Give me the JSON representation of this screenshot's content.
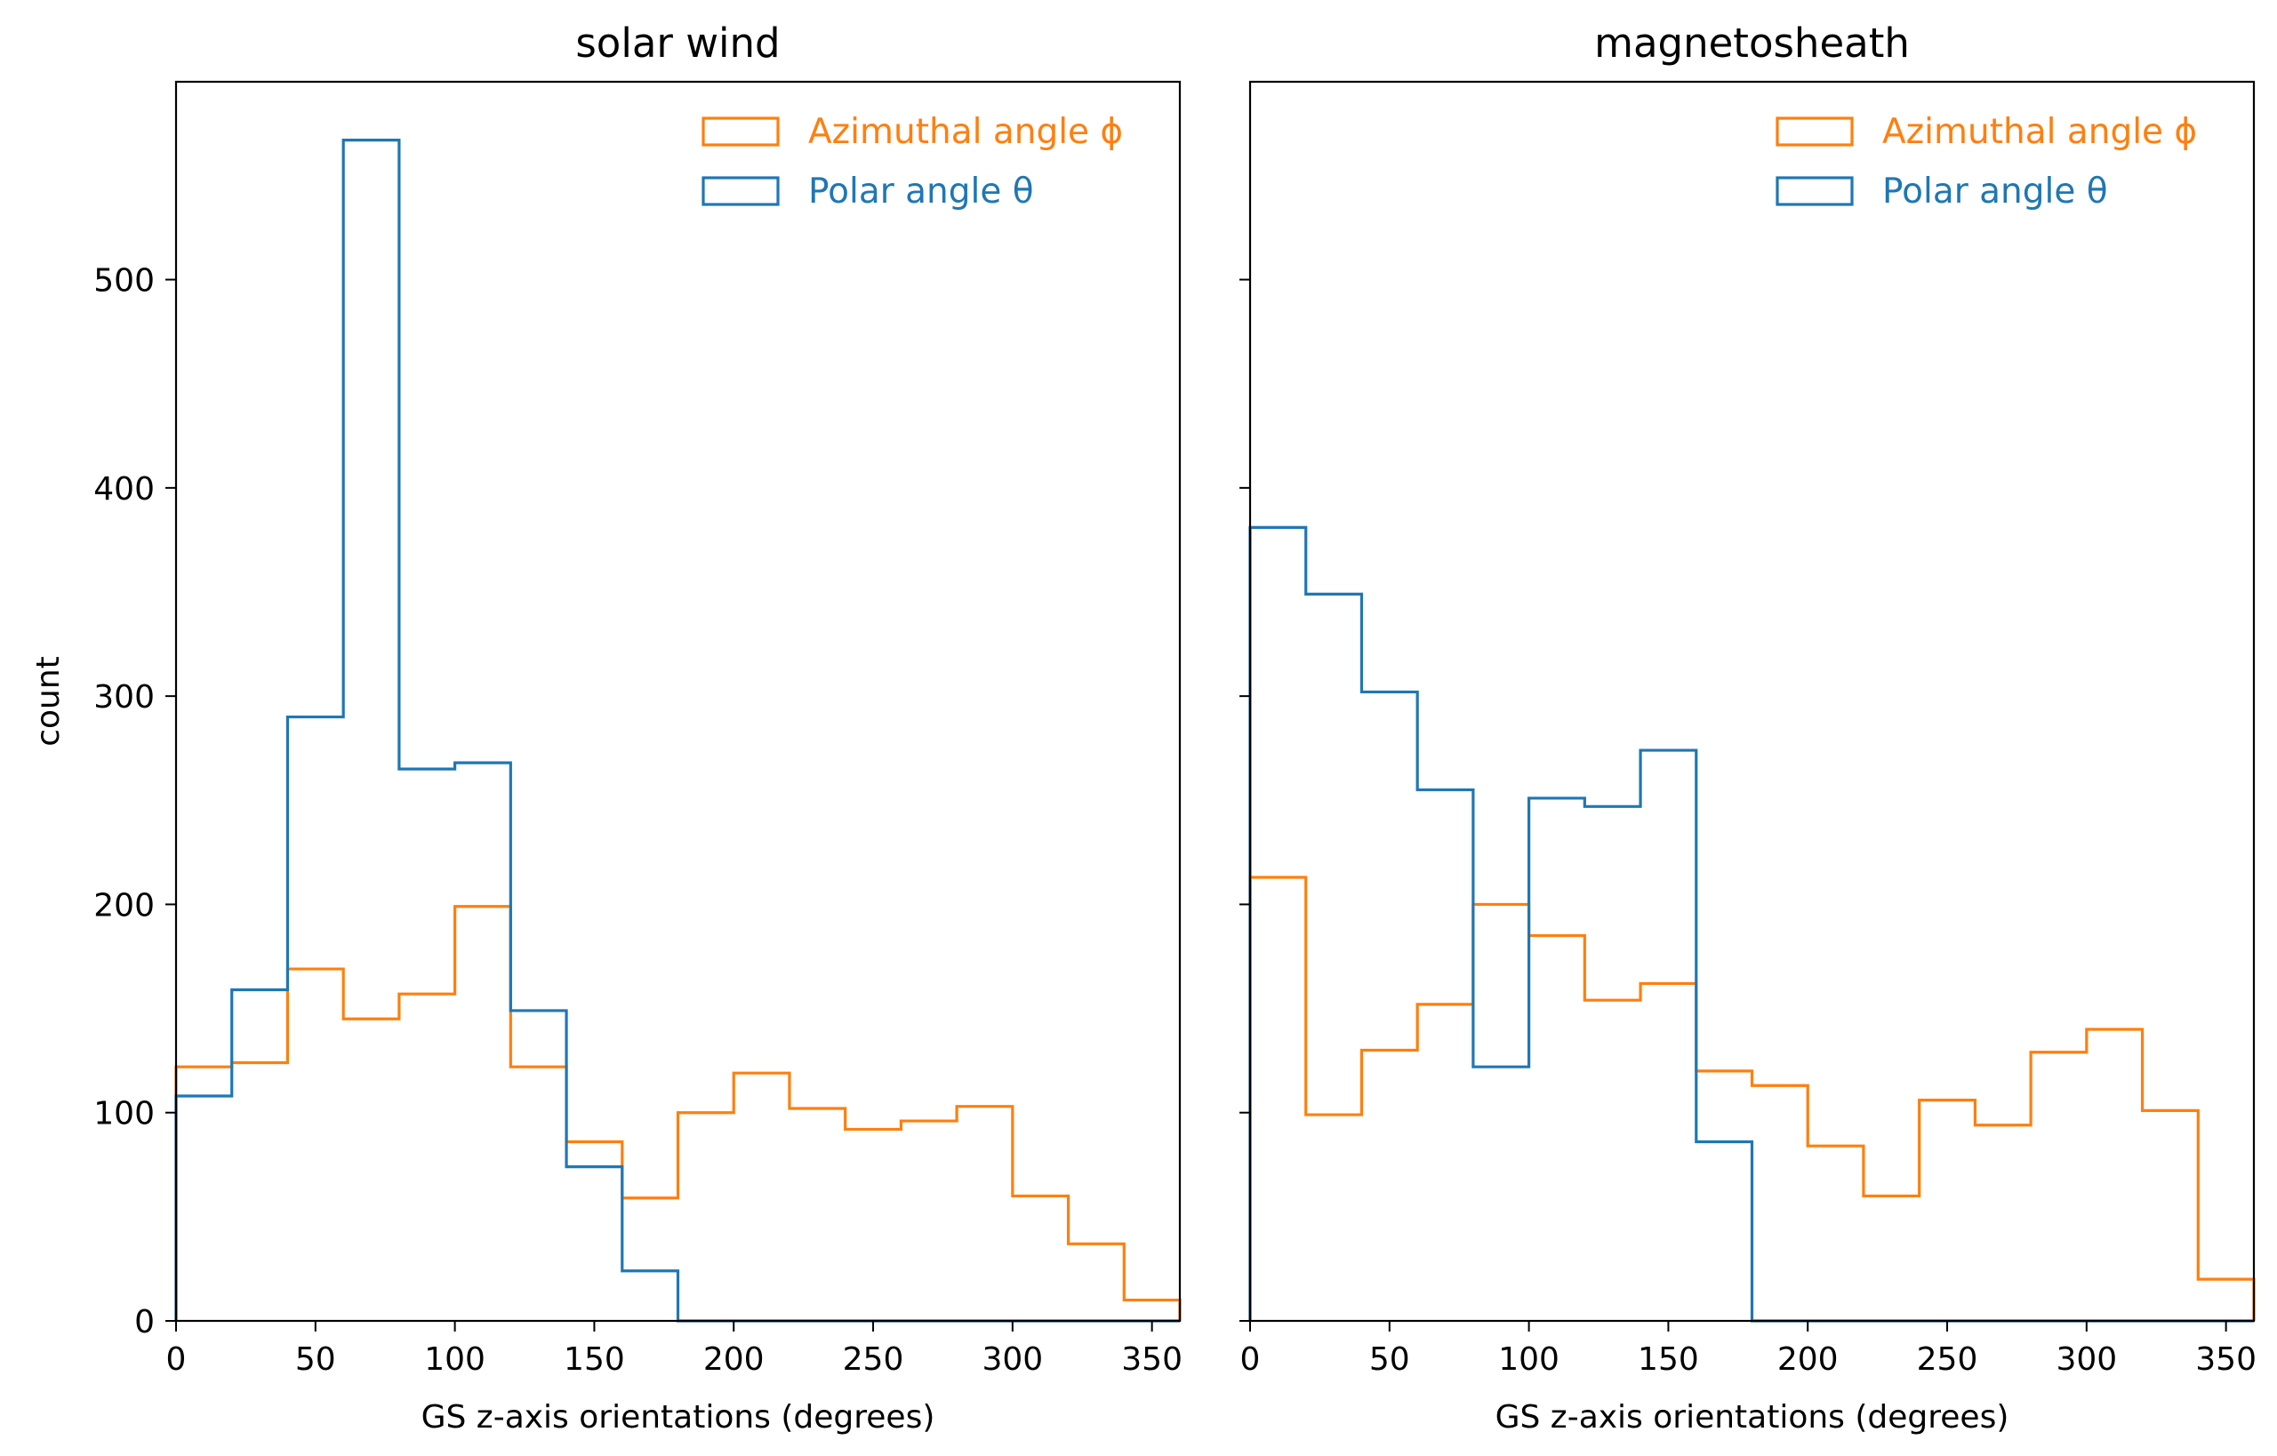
{
  "chart_data": [
    {
      "type": "histogram-step",
      "title": "solar wind",
      "xlabel": "GS z-axis orientations (degrees)",
      "ylabel": "count",
      "xlim": [
        0,
        360
      ],
      "ylim": [
        0,
        595
      ],
      "xticks": [
        0,
        50,
        100,
        150,
        200,
        250,
        300,
        350
      ],
      "yticks": [
        0,
        100,
        200,
        300,
        400,
        500
      ],
      "grid": false,
      "legend_position": "top-right",
      "bin_edges": [
        0,
        20,
        40,
        60,
        80,
        100,
        120,
        140,
        160,
        180,
        200,
        220,
        240,
        260,
        280,
        300,
        320,
        340,
        360
      ],
      "series": [
        {
          "name": "Azimuthal angle ϕ",
          "color": "#ff7f0e",
          "values": [
            122,
            124,
            169,
            145,
            157,
            199,
            122,
            86,
            59,
            100,
            119,
            102,
            92,
            96,
            103,
            60,
            37,
            10
          ]
        },
        {
          "name": "Polar angle θ",
          "color": "#1f77b4",
          "values": [
            108,
            159,
            290,
            567,
            265,
            268,
            149,
            74,
            24,
            0,
            0,
            0,
            0,
            0,
            0,
            0,
            0,
            0
          ]
        }
      ]
    },
    {
      "type": "histogram-step",
      "title": "magnetosheath",
      "xlabel": "GS z-axis orientations (degrees)",
      "ylabel": "",
      "xlim": [
        0,
        360
      ],
      "ylim": [
        0,
        595
      ],
      "xticks": [
        0,
        50,
        100,
        150,
        200,
        250,
        300,
        350
      ],
      "yticks": [
        0,
        100,
        200,
        300,
        400,
        500
      ],
      "grid": false,
      "legend_position": "top-right",
      "bin_edges": [
        0,
        20,
        40,
        60,
        80,
        100,
        120,
        140,
        160,
        180,
        200,
        220,
        240,
        260,
        280,
        300,
        320,
        340,
        360
      ],
      "series": [
        {
          "name": "Azimuthal angle ϕ",
          "color": "#ff7f0e",
          "values": [
            213,
            99,
            130,
            152,
            200,
            185,
            154,
            162,
            120,
            113,
            84,
            60,
            106,
            94,
            129,
            140,
            101,
            20
          ]
        },
        {
          "name": "Polar angle θ",
          "color": "#1f77b4",
          "values": [
            381,
            349,
            302,
            255,
            122,
            251,
            247,
            274,
            86,
            0,
            0,
            0,
            0,
            0,
            0,
            0,
            0,
            0
          ]
        }
      ]
    }
  ]
}
